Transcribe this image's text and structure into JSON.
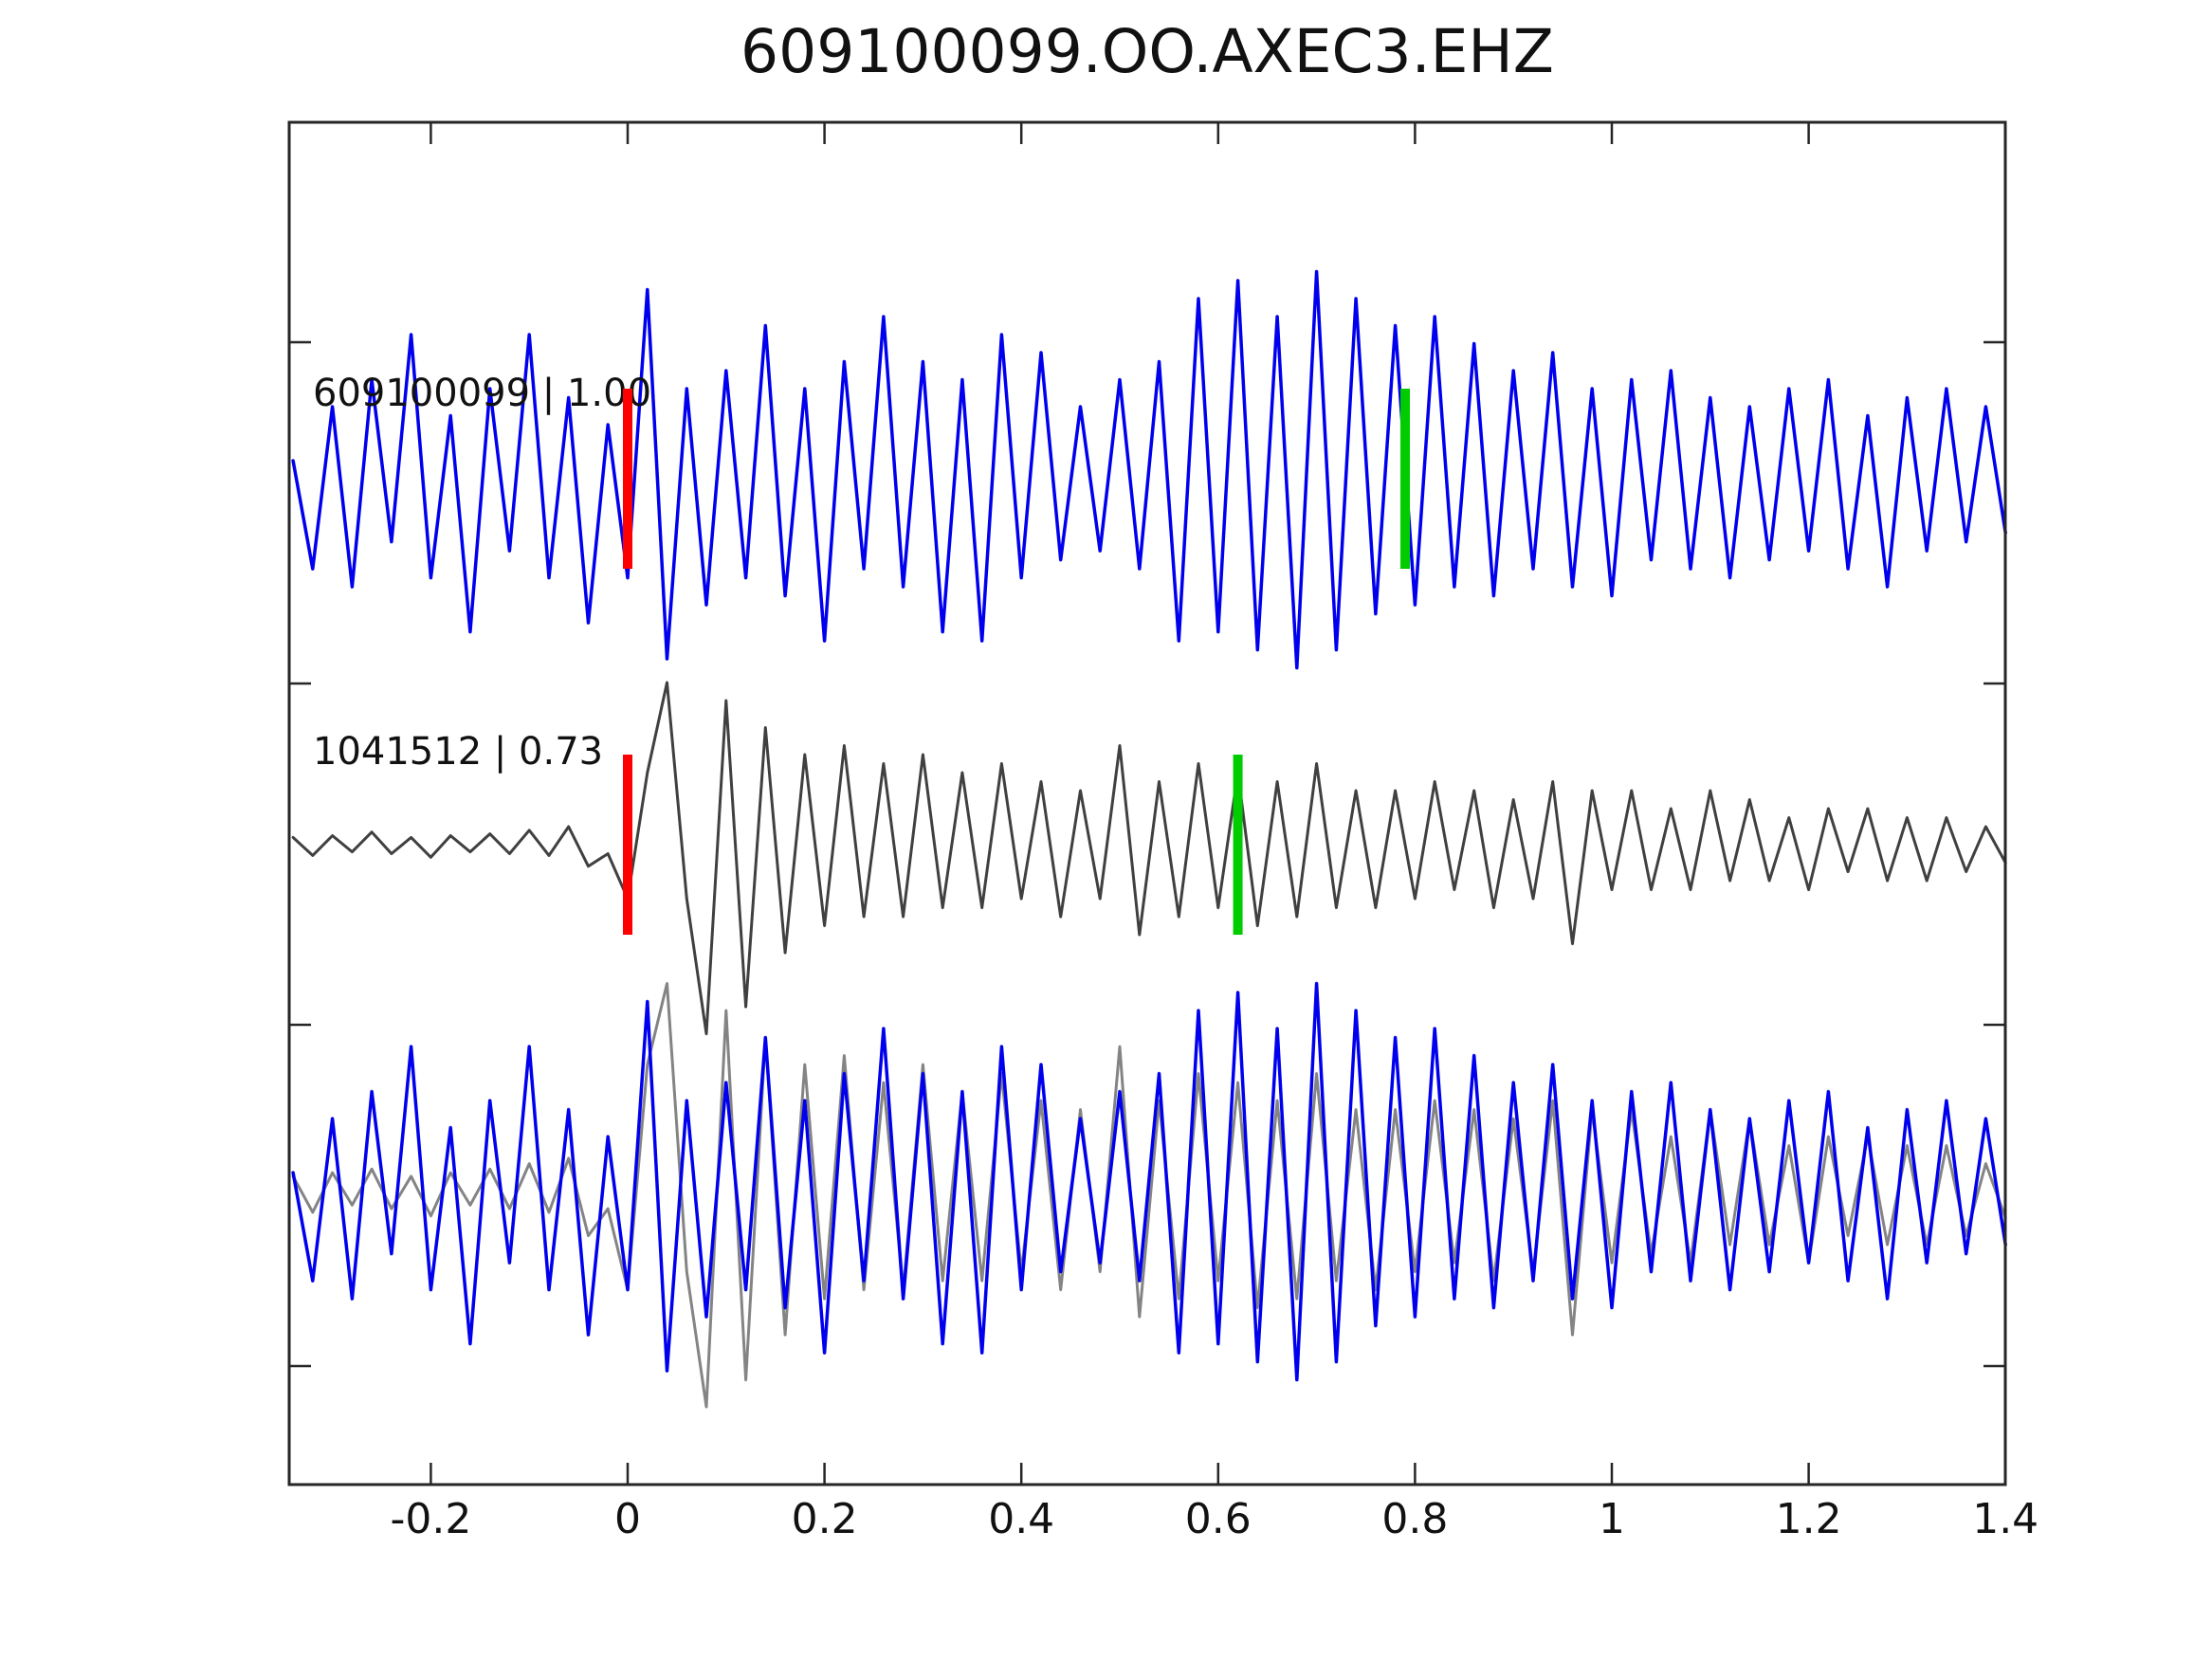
{
  "title": "609100099.OO.AXEC3.EHZ",
  "chart_data": {
    "type": "line",
    "title": "609100099.OO.AXEC3.EHZ",
    "xlabel": "",
    "ylabel": "",
    "grid": false,
    "legend": "none",
    "xlim": [
      -0.345,
      1.4
    ],
    "x_ticks": [
      -0.2,
      0,
      0.2,
      0.4,
      0.6,
      0.8,
      1,
      1.2,
      1.4
    ],
    "x_tick_labels": [
      "-0.2",
      "0",
      "0.2",
      "0.4",
      "0.6",
      "0.8",
      "1",
      "1.2",
      "1.4"
    ],
    "colors": {
      "template_blue": "#0000EE",
      "detection_gray": "#404040",
      "overlay_gray": "#848484",
      "pick_red": "#FF0000",
      "pick_green": "#00CC00",
      "axis": "#262626"
    },
    "sample_x0": -0.34,
    "sample_dx": 0.02,
    "traces": [
      {
        "id": "template-trace",
        "label": "609100099 | 1.00",
        "color": "#0000EE",
        "row": 0,
        "line_width": 3.5,
        "picks": [
          {
            "name": "red-pick",
            "color": "#FF0000",
            "x": 0.0
          },
          {
            "name": "green-pick",
            "color": "#00CC00",
            "x": 0.79
          }
        ],
        "values": [
          0.1,
          -0.5,
          0.4,
          -0.6,
          0.55,
          -0.35,
          0.8,
          -0.55,
          0.35,
          -0.85,
          0.5,
          -0.4,
          0.8,
          -0.55,
          0.45,
          -0.8,
          0.3,
          -0.55,
          1.05,
          -1.0,
          0.5,
          -0.7,
          0.6,
          -0.55,
          0.85,
          -0.65,
          0.5,
          -0.9,
          0.65,
          -0.5,
          0.9,
          -0.6,
          0.65,
          -0.85,
          0.55,
          -0.9,
          0.8,
          -0.55,
          0.7,
          -0.45,
          0.4,
          -0.4,
          0.55,
          -0.5,
          0.65,
          -0.9,
          1.0,
          -0.85,
          1.1,
          -0.95,
          0.9,
          -1.05,
          1.15,
          -0.95,
          1.0,
          -0.75,
          0.85,
          -0.7,
          0.9,
          -0.6,
          0.75,
          -0.65,
          0.6,
          -0.5,
          0.7,
          -0.6,
          0.5,
          -0.65,
          0.55,
          -0.45,
          0.6,
          -0.5,
          0.45,
          -0.55,
          0.4,
          -0.45,
          0.5,
          -0.4,
          0.55,
          -0.5,
          0.35,
          -0.6,
          0.45,
          -0.4,
          0.5,
          -0.35,
          0.4,
          -0.3
        ]
      },
      {
        "id": "detection-trace",
        "label": "1041512 | 0.73",
        "color": "#404040",
        "row": 1,
        "line_width": 3,
        "picks": [
          {
            "name": "red-pick",
            "color": "#FF0000",
            "x": 0.0
          },
          {
            "name": "green-pick",
            "color": "#00CC00",
            "x": 0.62
          }
        ],
        "values": [
          0.04,
          -0.06,
          0.05,
          -0.04,
          0.07,
          -0.05,
          0.04,
          -0.07,
          0.05,
          -0.04,
          0.06,
          -0.05,
          0.08,
          -0.06,
          0.1,
          -0.12,
          -0.05,
          -0.3,
          0.4,
          0.9,
          -0.3,
          -1.05,
          0.8,
          -0.9,
          0.65,
          -0.6,
          0.5,
          -0.45,
          0.55,
          -0.4,
          0.45,
          -0.4,
          0.5,
          -0.35,
          0.4,
          -0.35,
          0.45,
          -0.3,
          0.35,
          -0.4,
          0.3,
          -0.3,
          0.55,
          -0.5,
          0.35,
          -0.4,
          0.45,
          -0.35,
          0.4,
          -0.45,
          0.35,
          -0.4,
          0.45,
          -0.35,
          0.3,
          -0.35,
          0.3,
          -0.3,
          0.35,
          -0.25,
          0.3,
          -0.35,
          0.25,
          -0.3,
          0.35,
          -0.55,
          0.3,
          -0.25,
          0.3,
          -0.25,
          0.2,
          -0.25,
          0.3,
          -0.2,
          0.25,
          -0.2,
          0.15,
          -0.25,
          0.2,
          -0.15,
          0.2,
          -0.2,
          0.15,
          -0.2,
          0.15,
          -0.15,
          0.1,
          -0.1
        ]
      },
      {
        "id": "overlay-aligned-gray",
        "label": "",
        "color": "#848484",
        "row": 2,
        "line_width": 3,
        "picks": [],
        "values": [
          0.08,
          -0.12,
          0.1,
          -0.08,
          0.12,
          -0.1,
          0.08,
          -0.14,
          0.1,
          -0.08,
          0.12,
          -0.1,
          0.15,
          -0.12,
          0.18,
          -0.25,
          -0.1,
          -0.55,
          0.7,
          1.15,
          -0.45,
          -1.2,
          1.0,
          -1.05,
          0.85,
          -0.8,
          0.7,
          -0.6,
          0.75,
          -0.55,
          0.6,
          -0.55,
          0.7,
          -0.5,
          0.55,
          -0.5,
          0.65,
          -0.45,
          0.5,
          -0.55,
          0.45,
          -0.45,
          0.8,
          -0.7,
          0.5,
          -0.6,
          0.65,
          -0.5,
          0.6,
          -0.65,
          0.5,
          -0.6,
          0.65,
          -0.5,
          0.45,
          -0.55,
          0.45,
          -0.45,
          0.5,
          -0.4,
          0.45,
          -0.5,
          0.4,
          -0.45,
          0.5,
          -0.8,
          0.45,
          -0.4,
          0.45,
          -0.35,
          0.3,
          -0.4,
          0.45,
          -0.3,
          0.4,
          -0.3,
          0.25,
          -0.4,
          0.3,
          -0.25,
          0.3,
          -0.3,
          0.25,
          -0.3,
          0.25,
          -0.25,
          0.15,
          -0.15
        ]
      },
      {
        "id": "overlay-template-blue",
        "label": "",
        "color": "#0000EE",
        "row": 2,
        "line_width": 3.5,
        "picks": [],
        "values_from": 0
      }
    ]
  }
}
